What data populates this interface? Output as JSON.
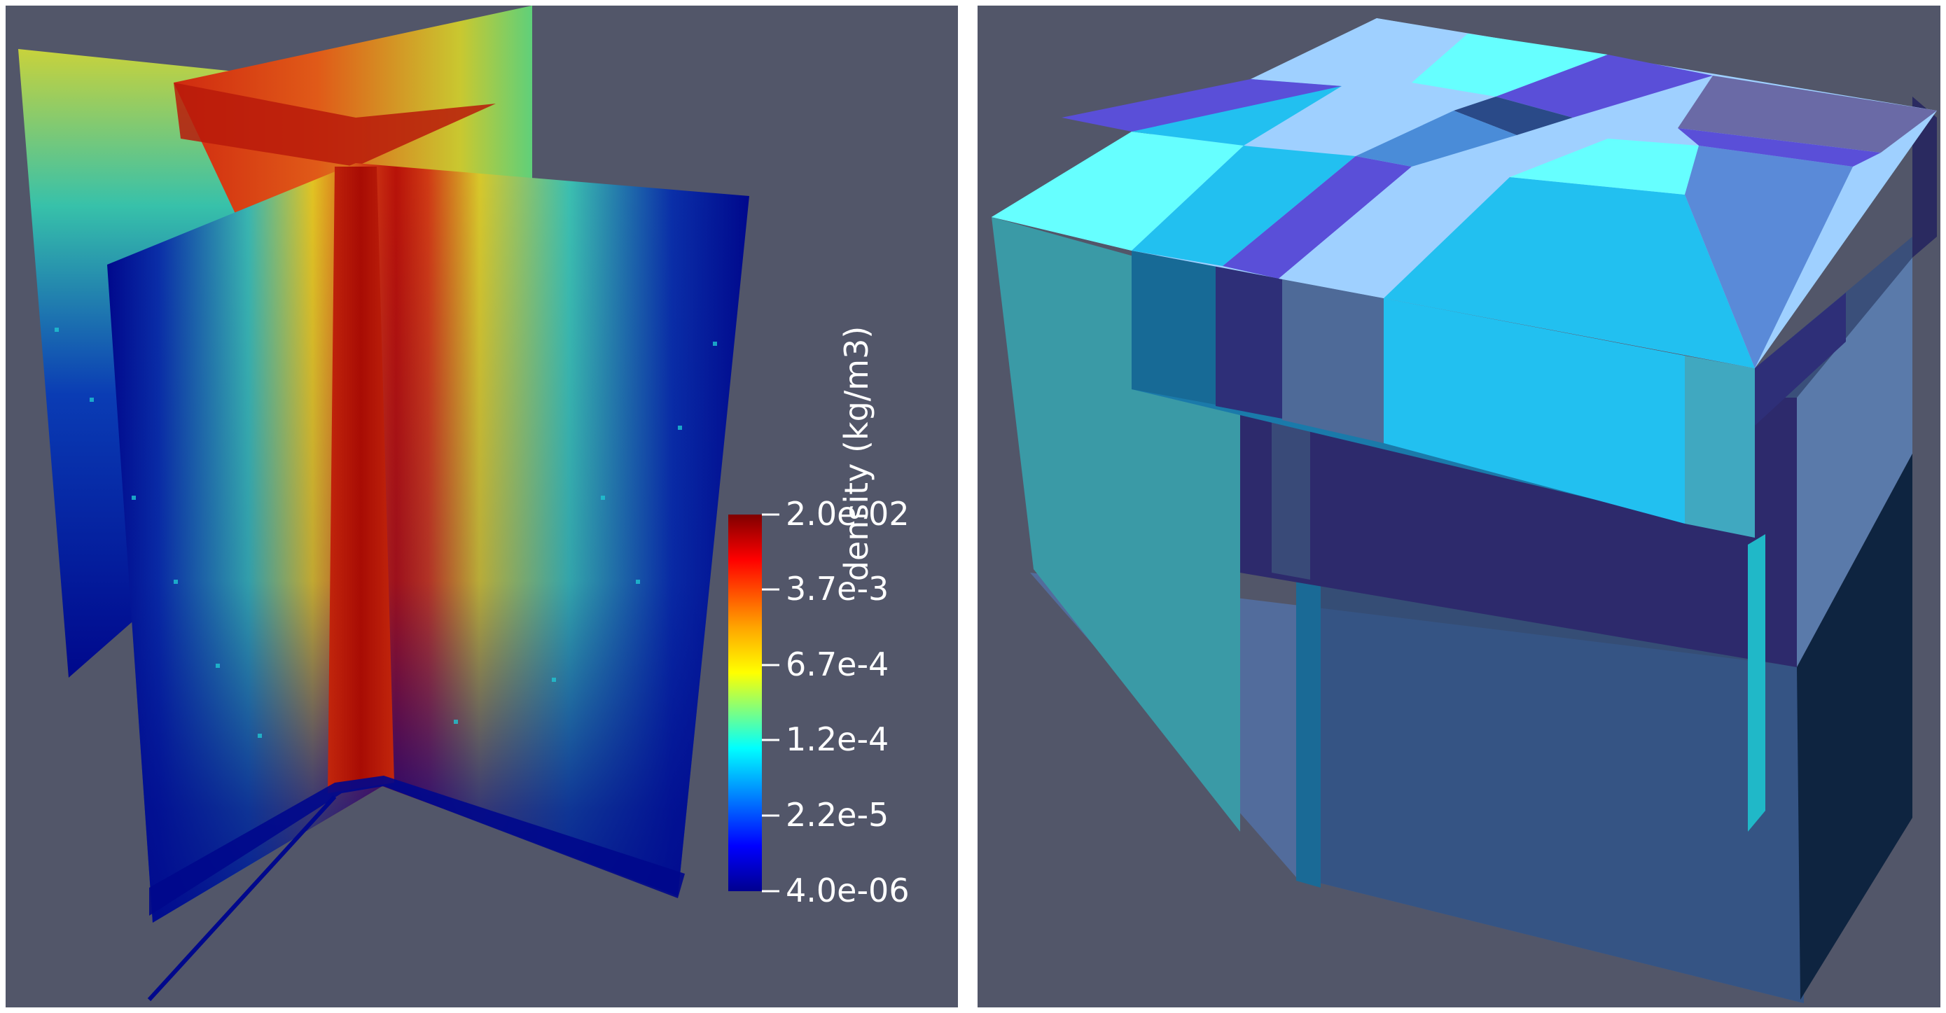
{
  "colorbar": {
    "label": "density (kg/m3)",
    "ticks": [
      "2.0e-02",
      "3.7e-3",
      "6.7e-4",
      "1.2e-4",
      "2.2e-5",
      "4.0e-06"
    ],
    "colors": [
      "#7f0000",
      "#ff0000",
      "#ffa500",
      "#ffff00",
      "#7fff7f",
      "#00ffff",
      "#0080ff",
      "#0000ff",
      "#00008f"
    ]
  },
  "colors": {
    "background": "#525669",
    "separator": "#ffffff"
  }
}
